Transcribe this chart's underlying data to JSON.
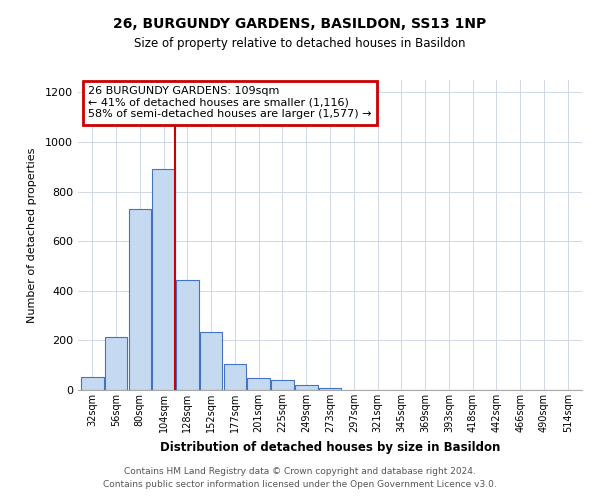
{
  "title": "26, BURGUNDY GARDENS, BASILDON, SS13 1NP",
  "subtitle": "Size of property relative to detached houses in Basildon",
  "xlabel": "Distribution of detached houses by size in Basildon",
  "ylabel": "Number of detached properties",
  "bin_labels": [
    "32sqm",
    "56sqm",
    "80sqm",
    "104sqm",
    "128sqm",
    "152sqm",
    "177sqm",
    "201sqm",
    "225sqm",
    "249sqm",
    "273sqm",
    "297sqm",
    "321sqm",
    "345sqm",
    "369sqm",
    "393sqm",
    "418sqm",
    "442sqm",
    "466sqm",
    "490sqm",
    "514sqm"
  ],
  "bar_values": [
    52,
    215,
    730,
    890,
    445,
    235,
    105,
    50,
    40,
    20,
    10,
    0,
    0,
    0,
    0,
    0,
    0,
    0,
    0,
    0,
    0
  ],
  "bar_color": "#c5d9f1",
  "bar_edge_color": "#4472c4",
  "vline_x": 3.5,
  "vline_color": "#cc0000",
  "ylim": [
    0,
    1250
  ],
  "yticks": [
    0,
    200,
    400,
    600,
    800,
    1000,
    1200
  ],
  "annotation_title": "26 BURGUNDY GARDENS: 109sqm",
  "annotation_line1": "← 41% of detached houses are smaller (1,116)",
  "annotation_line2": "58% of semi-detached houses are larger (1,577) →",
  "annotation_box_color": "#cc0000",
  "footer_line1": "Contains HM Land Registry data © Crown copyright and database right 2024.",
  "footer_line2": "Contains public sector information licensed under the Open Government Licence v3.0.",
  "grid_color": "#d0d8e8",
  "background_color": "#ffffff"
}
